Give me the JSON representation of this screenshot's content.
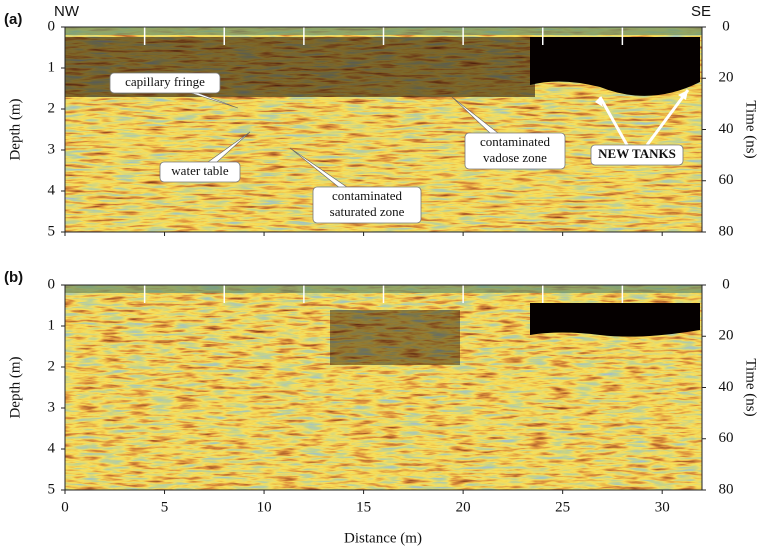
{
  "panels": [
    {
      "label": "(a)",
      "left_corner": "NW",
      "right_corner": "SE",
      "annotations": [
        {
          "lines": [
            "capillary fringe"
          ]
        },
        {
          "lines": [
            "water table"
          ]
        },
        {
          "lines": [
            "contaminated",
            "saturated zone"
          ]
        },
        {
          "lines": [
            "contaminated",
            "vadose zone"
          ]
        },
        {
          "lines": [
            "NEW TANKS"
          ]
        }
      ]
    },
    {
      "label": "(b)",
      "annotations": []
    }
  ],
  "markers": [
    4,
    8,
    12,
    16,
    20,
    24,
    28
  ],
  "x_axis": {
    "label": "Distance (m)",
    "lim": [
      0,
      32
    ],
    "ticks": [
      0,
      5,
      10,
      15,
      20,
      25,
      30
    ]
  },
  "y_axis": {
    "label": "Depth (m)",
    "lim": [
      0,
      5
    ],
    "ticks": [
      0,
      1,
      2,
      3,
      4,
      5
    ]
  },
  "y2_axis": {
    "label": "Time (ns)",
    "lim": [
      0,
      80
    ],
    "ticks": [
      0,
      20,
      40,
      60,
      80
    ]
  }
}
